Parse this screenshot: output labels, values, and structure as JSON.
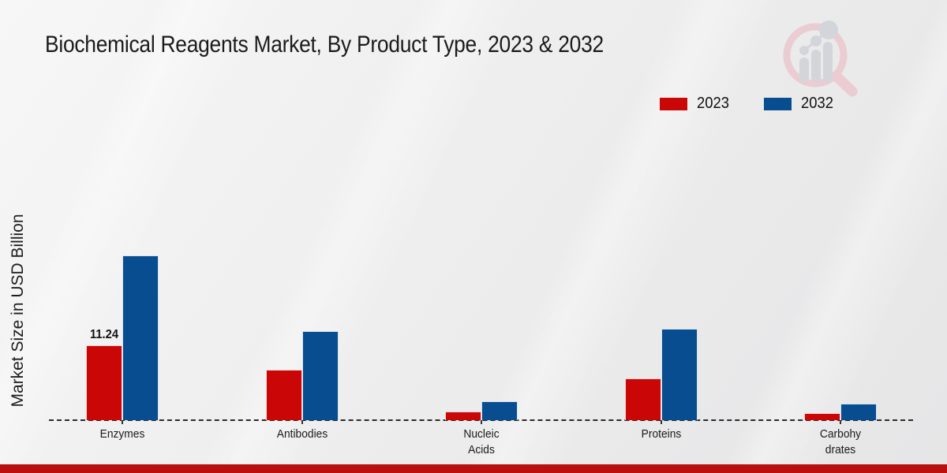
{
  "title": "Biochemical Reagents Market, By Product Type, 2023 & 2032",
  "ylabel": "Market Size in USD Billion",
  "legend": [
    {
      "label": "2023",
      "color": "#cb0606"
    },
    {
      "label": "2032",
      "color": "#084d8f"
    }
  ],
  "colors": {
    "bar_2023": "#cb0606",
    "bar_2032": "#084d8f",
    "footer": "#b90f0f",
    "baseline": "#2b2b2b",
    "watermark_pink": "#eaccd2",
    "watermark_gray": "#d2d5da"
  },
  "chart_data": {
    "type": "bar",
    "title": "Biochemical Reagents Market, By Product Type, 2023 & 2032",
    "categories": [
      "Enzymes",
      "Antibodies",
      "Nucleic Acids",
      "Proteins",
      "Carbohydrates"
    ],
    "category_display": [
      [
        "Enzymes"
      ],
      [
        "Antibodies"
      ],
      [
        "Nucleic",
        "Acids"
      ],
      [
        "Proteins"
      ],
      [
        "Carbohy",
        "drates"
      ]
    ],
    "series": [
      {
        "name": "2023",
        "color": "#cb0606",
        "values": [
          11.24,
          7.6,
          1.3,
          6.3,
          1.1
        ]
      },
      {
        "name": "2032",
        "color": "#084d8f",
        "values": [
          24.7,
          13.4,
          2.8,
          13.7,
          2.5
        ]
      }
    ],
    "data_labels": [
      {
        "category_index": 0,
        "series_index": 0,
        "text": "11.24"
      }
    ],
    "xlabel": "",
    "ylabel": "Market Size in USD Billion",
    "ylim": [
      0,
      27
    ],
    "grid": false,
    "legend_position": "top-right",
    "baseline_style": "dashed",
    "icons": {
      "watermark": "market-research-future-logo"
    }
  }
}
